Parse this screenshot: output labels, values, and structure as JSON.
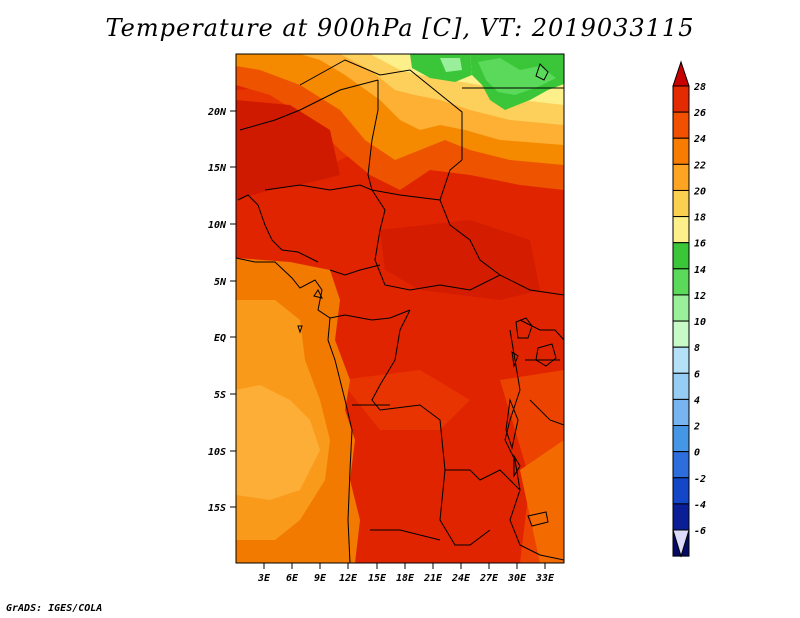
{
  "title": "Temperature at 900hPa [C], VT: 2019033115",
  "credit": "GrADS: IGES/COLA",
  "map": {
    "lat_labels": [
      "20N",
      "15N",
      "10N",
      "5N",
      "EQ",
      "5S",
      "10S",
      "15S"
    ],
    "lon_labels": [
      "3E",
      "6E",
      "9E",
      "12E",
      "15E",
      "18E",
      "21E",
      "24E",
      "27E",
      "30E",
      "33E"
    ]
  },
  "colorbar": {
    "labels": [
      "28",
      "26",
      "24",
      "22",
      "20",
      "18",
      "16",
      "14",
      "12",
      "10",
      "8",
      "6",
      "4",
      "2",
      "0",
      "-2",
      "-4",
      "-6"
    ],
    "colors": [
      "#c80000",
      "#e42a00",
      "#f05000",
      "#f87c00",
      "#fda522",
      "#fbcf50",
      "#fdef8a",
      "#3bc63a",
      "#5ad95a",
      "#9af09a",
      "#c8fac8",
      "#b4e1f8",
      "#96cdf5",
      "#78b4f0",
      "#4696e6",
      "#2d6edc",
      "#1446c8",
      "#0a1e96",
      "#050a64"
    ],
    "under_color": "#dcdcfa"
  }
}
